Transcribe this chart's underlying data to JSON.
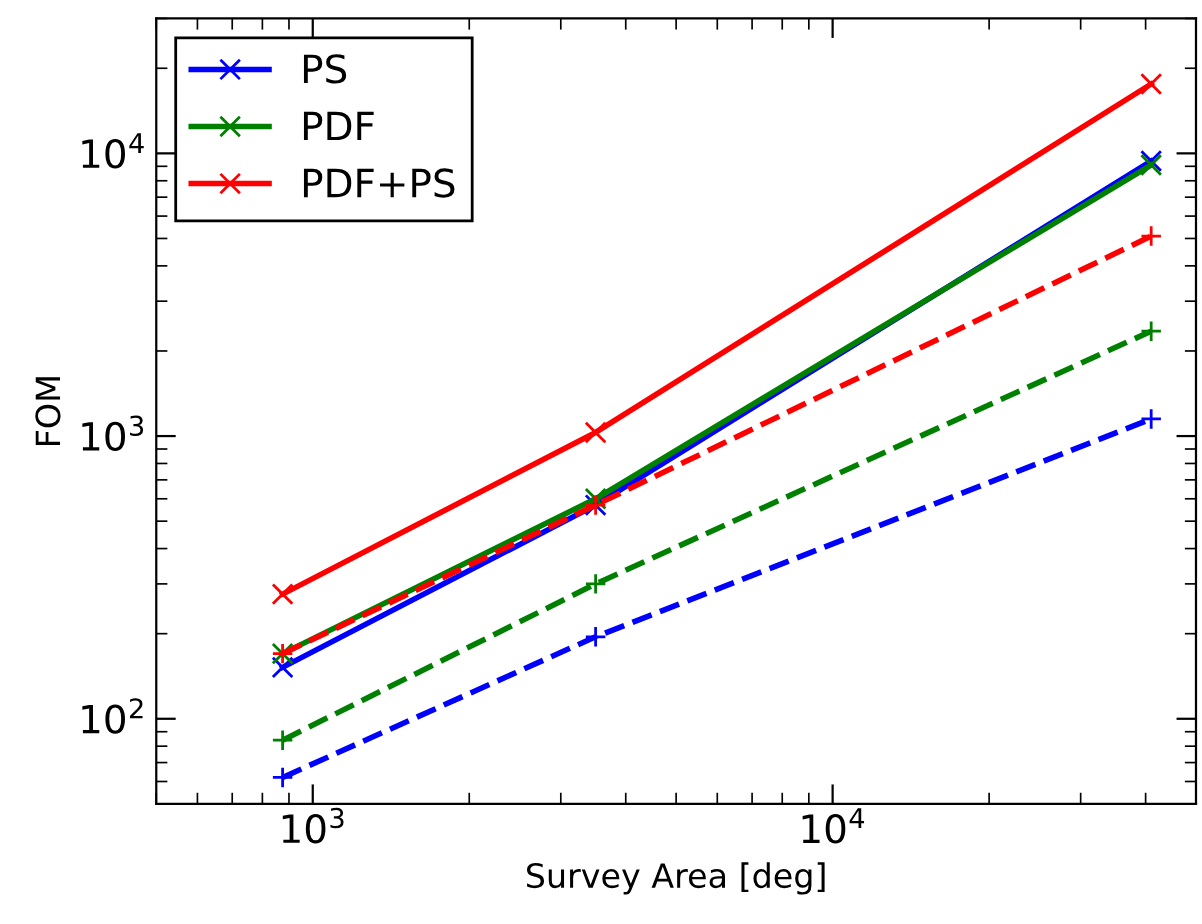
{
  "chart_data": {
    "type": "line",
    "xlabel": "Survey Area [deg]",
    "ylabel": "FOM",
    "log": "xy",
    "x": [
      875,
      3500,
      41000
    ],
    "series": [
      {
        "name": "PS",
        "color": "#0000ff",
        "values": [
          152,
          570,
          9400
        ],
        "marker": "cross",
        "line_style": "solid"
      },
      {
        "name": "PDF",
        "color": "#008000",
        "values": [
          170,
          600,
          9100
        ],
        "marker": "cross",
        "line_style": "solid"
      },
      {
        "name": "PDF+PS",
        "color": "#ff0000",
        "values": [
          276,
          1030,
          17600
        ],
        "marker": "cross",
        "line_style": "solid"
      },
      {
        "color": "#ff0000",
        "values": [
          170,
          570,
          5100
        ],
        "marker": "plus",
        "line_style": "dashed"
      },
      {
        "color": "#008000",
        "values": [
          84,
          300,
          2350
        ],
        "marker": "plus",
        "line_style": "dashed"
      },
      {
        "color": "#0000ff",
        "values": [
          62,
          195,
          1150
        ],
        "marker": "plus",
        "line_style": "dashed"
      }
    ],
    "xlim": [
      500,
      50000
    ],
    "ylim": [
      50,
      30000
    ],
    "xticks": [
      {
        "value": 1000,
        "label": "10$^{3}$"
      },
      {
        "value": 10000,
        "label": "10$^{4}$"
      }
    ],
    "yticks": [
      {
        "value": 100,
        "label": "10$^{2}$"
      },
      {
        "value": 1000,
        "label": "10$^{3}$"
      },
      {
        "value": 10000,
        "label": "10$^{4}$"
      }
    ],
    "grid": false,
    "legend": "top left"
  }
}
